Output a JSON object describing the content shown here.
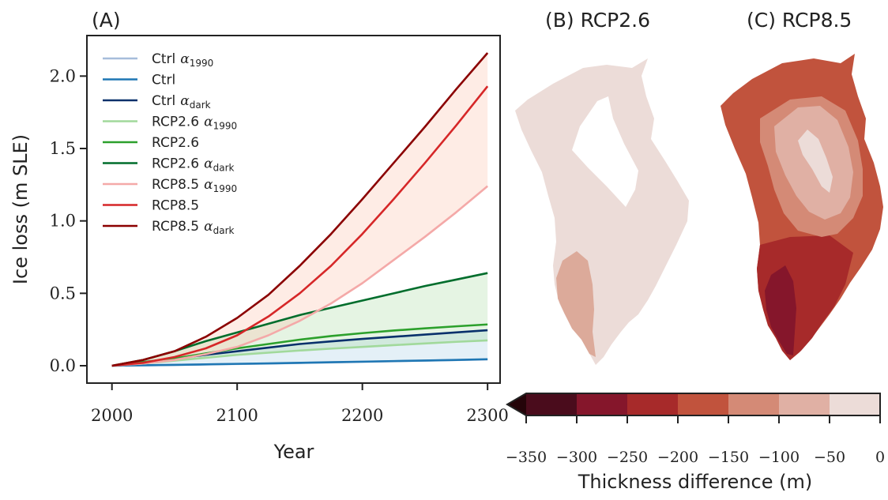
{
  "panels": {
    "a_label": "(A)",
    "b_label": "(B) RCP2.6",
    "c_label": "(C) RCP8.5"
  },
  "chart_data": [
    {
      "type": "line",
      "xlabel": "Year",
      "ylabel": "Ice loss (m SLE)",
      "xlim": [
        1980,
        2310
      ],
      "ylim": [
        -0.12,
        2.28
      ],
      "xticks": [
        2000,
        2100,
        2200,
        2300
      ],
      "yticks": [
        0.0,
        0.5,
        1.0,
        1.5,
        2.0
      ],
      "ytick_labels": [
        "0.0",
        "0.5",
        "1.0",
        "1.5",
        "2.0"
      ],
      "grid": false,
      "legend_position": "upper-left",
      "x": [
        2000,
        2025,
        2050,
        2075,
        2100,
        2125,
        2150,
        2175,
        2200,
        2225,
        2250,
        2275,
        2300
      ],
      "series": [
        {
          "name": "Ctrl",
          "sub": "1990",
          "alpha": true,
          "color": "#a6bddb",
          "values": [
            0,
            0.003,
            0.006,
            0.009,
            0.012,
            0.015,
            0.019,
            0.023,
            0.027,
            0.031,
            0.035,
            0.039,
            0.043
          ]
        },
        {
          "name": "Ctrl",
          "sub": "",
          "alpha": false,
          "color": "#1f77b4",
          "values": [
            0,
            0.003,
            0.006,
            0.009,
            0.013,
            0.016,
            0.02,
            0.024,
            0.028,
            0.032,
            0.036,
            0.04,
            0.045
          ]
        },
        {
          "name": "Ctrl",
          "sub": "dark",
          "alpha": true,
          "color": "#08306b",
          "values": [
            0,
            0.025,
            0.05,
            0.075,
            0.1,
            0.125,
            0.15,
            0.168,
            0.185,
            0.2,
            0.215,
            0.23,
            0.245
          ]
        },
        {
          "name": "RCP2.6",
          "sub": "1990",
          "alpha": true,
          "color": "#a1d99b",
          "values": [
            0,
            0.015,
            0.035,
            0.055,
            0.075,
            0.09,
            0.105,
            0.118,
            0.13,
            0.142,
            0.154,
            0.165,
            0.175
          ]
        },
        {
          "name": "RCP2.6",
          "sub": "",
          "alpha": false,
          "color": "#2ca02c",
          "values": [
            0,
            0.025,
            0.05,
            0.085,
            0.12,
            0.15,
            0.18,
            0.205,
            0.225,
            0.243,
            0.258,
            0.272,
            0.285
          ]
        },
        {
          "name": "RCP2.6",
          "sub": "dark",
          "alpha": true,
          "color": "#006d2c",
          "values": [
            0,
            0.04,
            0.1,
            0.17,
            0.23,
            0.29,
            0.35,
            0.4,
            0.45,
            0.5,
            0.55,
            0.595,
            0.64
          ]
        },
        {
          "name": "RCP8.5",
          "sub": "1990",
          "alpha": true,
          "color": "#f4a9a8",
          "values": [
            0,
            0.015,
            0.04,
            0.08,
            0.13,
            0.21,
            0.31,
            0.43,
            0.57,
            0.73,
            0.89,
            1.06,
            1.24
          ]
        },
        {
          "name": "RCP8.5",
          "sub": "",
          "alpha": false,
          "color": "#d62728",
          "values": [
            0,
            0.02,
            0.06,
            0.12,
            0.21,
            0.34,
            0.5,
            0.69,
            0.91,
            1.15,
            1.4,
            1.66,
            1.93
          ]
        },
        {
          "name": "RCP8.5",
          "sub": "dark",
          "alpha": true,
          "color": "#8b0000",
          "values": [
            0,
            0.04,
            0.1,
            0.2,
            0.33,
            0.49,
            0.69,
            0.91,
            1.15,
            1.4,
            1.65,
            1.91,
            2.16
          ]
        }
      ],
      "bands": [
        {
          "between": [
            0,
            2
          ],
          "color": "#9ecae1"
        },
        {
          "between": [
            3,
            5
          ],
          "color": "#a1d99b"
        },
        {
          "between": [
            6,
            8
          ],
          "color": "#fcbba1"
        }
      ]
    },
    {
      "type": "colorbar",
      "label": "Thickness difference (m)",
      "ticks": [
        -350,
        -300,
        -250,
        -200,
        -150,
        -100,
        -50,
        0
      ],
      "tick_labels": [
        "−350",
        "−300",
        "−250",
        "−200",
        "−150",
        "−100",
        "−50",
        "0"
      ],
      "colors": [
        "#4a0c1c",
        "#85162b",
        "#a72a2a",
        "#c1533d",
        "#d48a76",
        "#e0b0a4",
        "#ecdcd8"
      ],
      "extend": "min"
    }
  ],
  "maps": {
    "rcp26": {
      "interior": "#ffffff",
      "fill": "#ecdcd8",
      "south": "#dcaa9a"
    },
    "rcp85": {
      "outer": "#c1533d",
      "mid": "#d48a76",
      "inner": "#e0b0a4",
      "core": "#ecdcd8",
      "south": "#a72a2a",
      "tip": "#85162b"
    }
  }
}
